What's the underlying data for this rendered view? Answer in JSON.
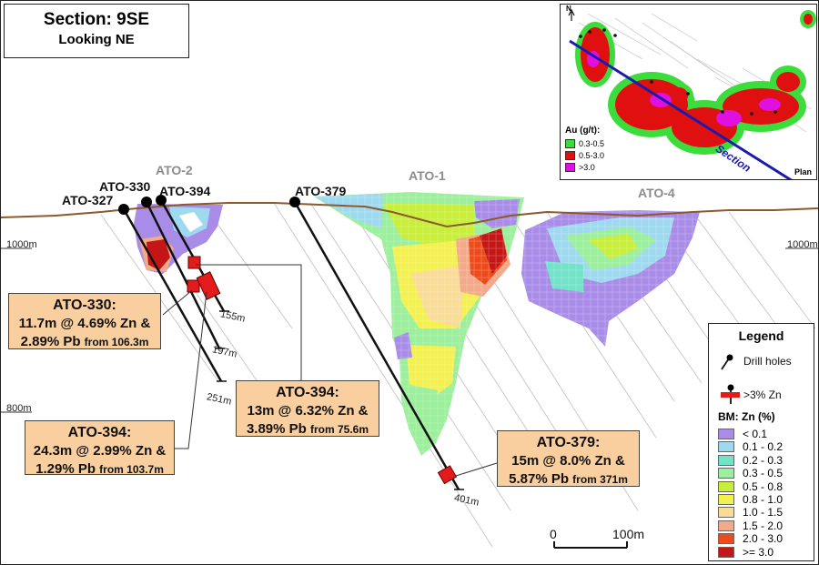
{
  "title": {
    "section": "Section: 9SE",
    "view": "Looking NE"
  },
  "elevations": {
    "upper_left": "1000m",
    "upper_right": "1000m",
    "lower_left": "800m"
  },
  "zones": [
    "ATO-2",
    "ATO-1",
    "ATO-4"
  ],
  "drill_holes": [
    {
      "name": "ATO-327",
      "depth_label": "251m"
    },
    {
      "name": "ATO-330",
      "depth_label": "197m"
    },
    {
      "name": "ATO-394",
      "depth_label": "155m"
    },
    {
      "name": "ATO-379",
      "depth_label": "401m"
    }
  ],
  "callouts": [
    {
      "hole": "ATO-330:",
      "line1": "11.7m @ 4.69% Zn &",
      "line2": "2.89% Pb",
      "from": "from 106.3m"
    },
    {
      "hole": "ATO-394:",
      "line1": "13m @ 6.32% Zn &",
      "line2": "3.89% Pb",
      "from": "from 75.6m"
    },
    {
      "hole": "ATO-394:",
      "line1": "24.3m @ 2.99% Zn &",
      "line2": "1.29% Pb",
      "from": "from 103.7m"
    },
    {
      "hole": "ATO-379:",
      "line1": "15m @ 8.0% Zn &",
      "line2": "5.87% Pb",
      "from": "from 371m"
    }
  ],
  "scale_bar": {
    "start": "0",
    "end": "100m"
  },
  "inset": {
    "north": "N",
    "au_title": "Au (g/t):",
    "au_classes": [
      {
        "label": "0.3-0.5",
        "color": "#3ddc3d"
      },
      {
        "label": "0.5-3.0",
        "color": "#e01010"
      },
      {
        "label": ">3.0",
        "color": "#e010e0"
      }
    ],
    "section_label": "Section",
    "plan_label": "Plan"
  },
  "legend": {
    "title": "Legend",
    "drill_holes_label": "Drill holes",
    "zn_label": ">3% Zn",
    "bm_title": "BM: Zn (%)",
    "classes": [
      {
        "label": "< 0.1",
        "color": "#a88ce8"
      },
      {
        "label": "0.1 - 0.2",
        "color": "#9fd9f0"
      },
      {
        "label": "0.2 - 0.3",
        "color": "#72e2c8"
      },
      {
        "label": "0.3 - 0.5",
        "color": "#9cef9c"
      },
      {
        "label": "0.5 - 0.8",
        "color": "#c9ee3a"
      },
      {
        "label": "0.8 - 1.0",
        "color": "#f3f150"
      },
      {
        "label": "1.0 - 1.5",
        "color": "#f8dc98"
      },
      {
        "label": "1.5 - 2.0",
        "color": "#f3a98a"
      },
      {
        "label": "2.0 - 3.0",
        "color": "#ee4b1c"
      },
      {
        "label": ">= 3.0",
        "color": "#c41616"
      }
    ]
  }
}
